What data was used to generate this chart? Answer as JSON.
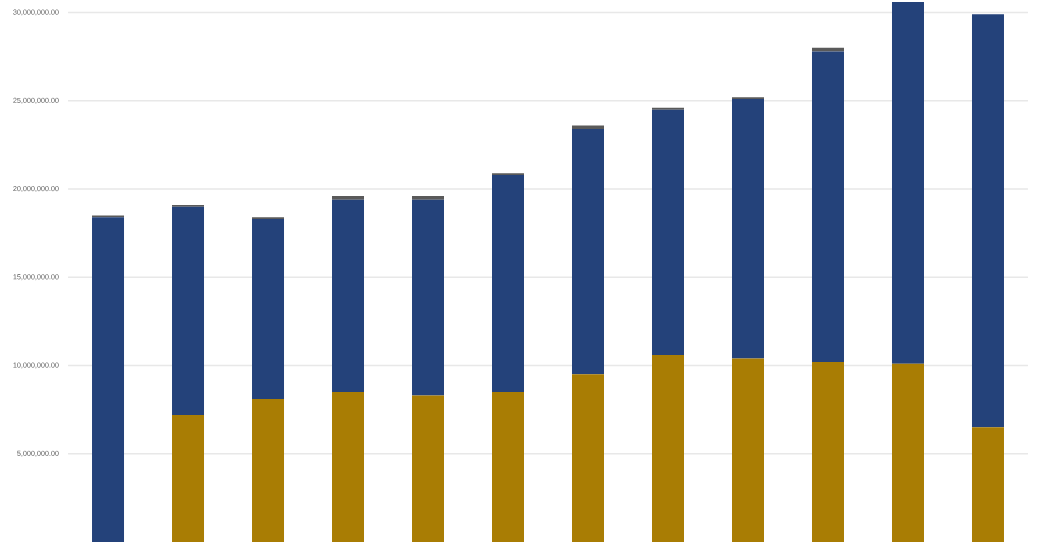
{
  "chart_data": {
    "type": "bar",
    "stacked": true,
    "categories": [
      null,
      null,
      null,
      null,
      null,
      null,
      null,
      null,
      null,
      null,
      null,
      null
    ],
    "series": [
      {
        "color": "#a97d04",
        "values": [
          null,
          7200000,
          8100000,
          8500000,
          8300000,
          8500000,
          9500000,
          10600000,
          10400000,
          10200000,
          10100000,
          6500000
        ]
      },
      {
        "color": "#24427a",
        "values": [
          18400000,
          11800000,
          10200000,
          10900000,
          11100000,
          12300000,
          13900000,
          13900000,
          14700000,
          17600000,
          20500000,
          23400000
        ]
      },
      {
        "color": "#5a5a5a",
        "values": [
          100000,
          100000,
          100000,
          200000,
          200000,
          100000,
          200000,
          100000,
          100000,
          200000,
          null,
          null
        ]
      }
    ],
    "ylim": [
      0,
      30600000
    ],
    "yticks": [
      {
        "value": 5000000,
        "label": "5,000,000.00"
      },
      {
        "value": 10000000,
        "label": "10,000,000.00"
      },
      {
        "value": 15000000,
        "label": "15,000,000.00"
      },
      {
        "value": 20000000,
        "label": "20,000,000.00"
      },
      {
        "value": 25000000,
        "label": "25,000,000.00"
      },
      {
        "value": 30000000,
        "label": "30,000,000.00"
      }
    ],
    "grid": "y"
  }
}
